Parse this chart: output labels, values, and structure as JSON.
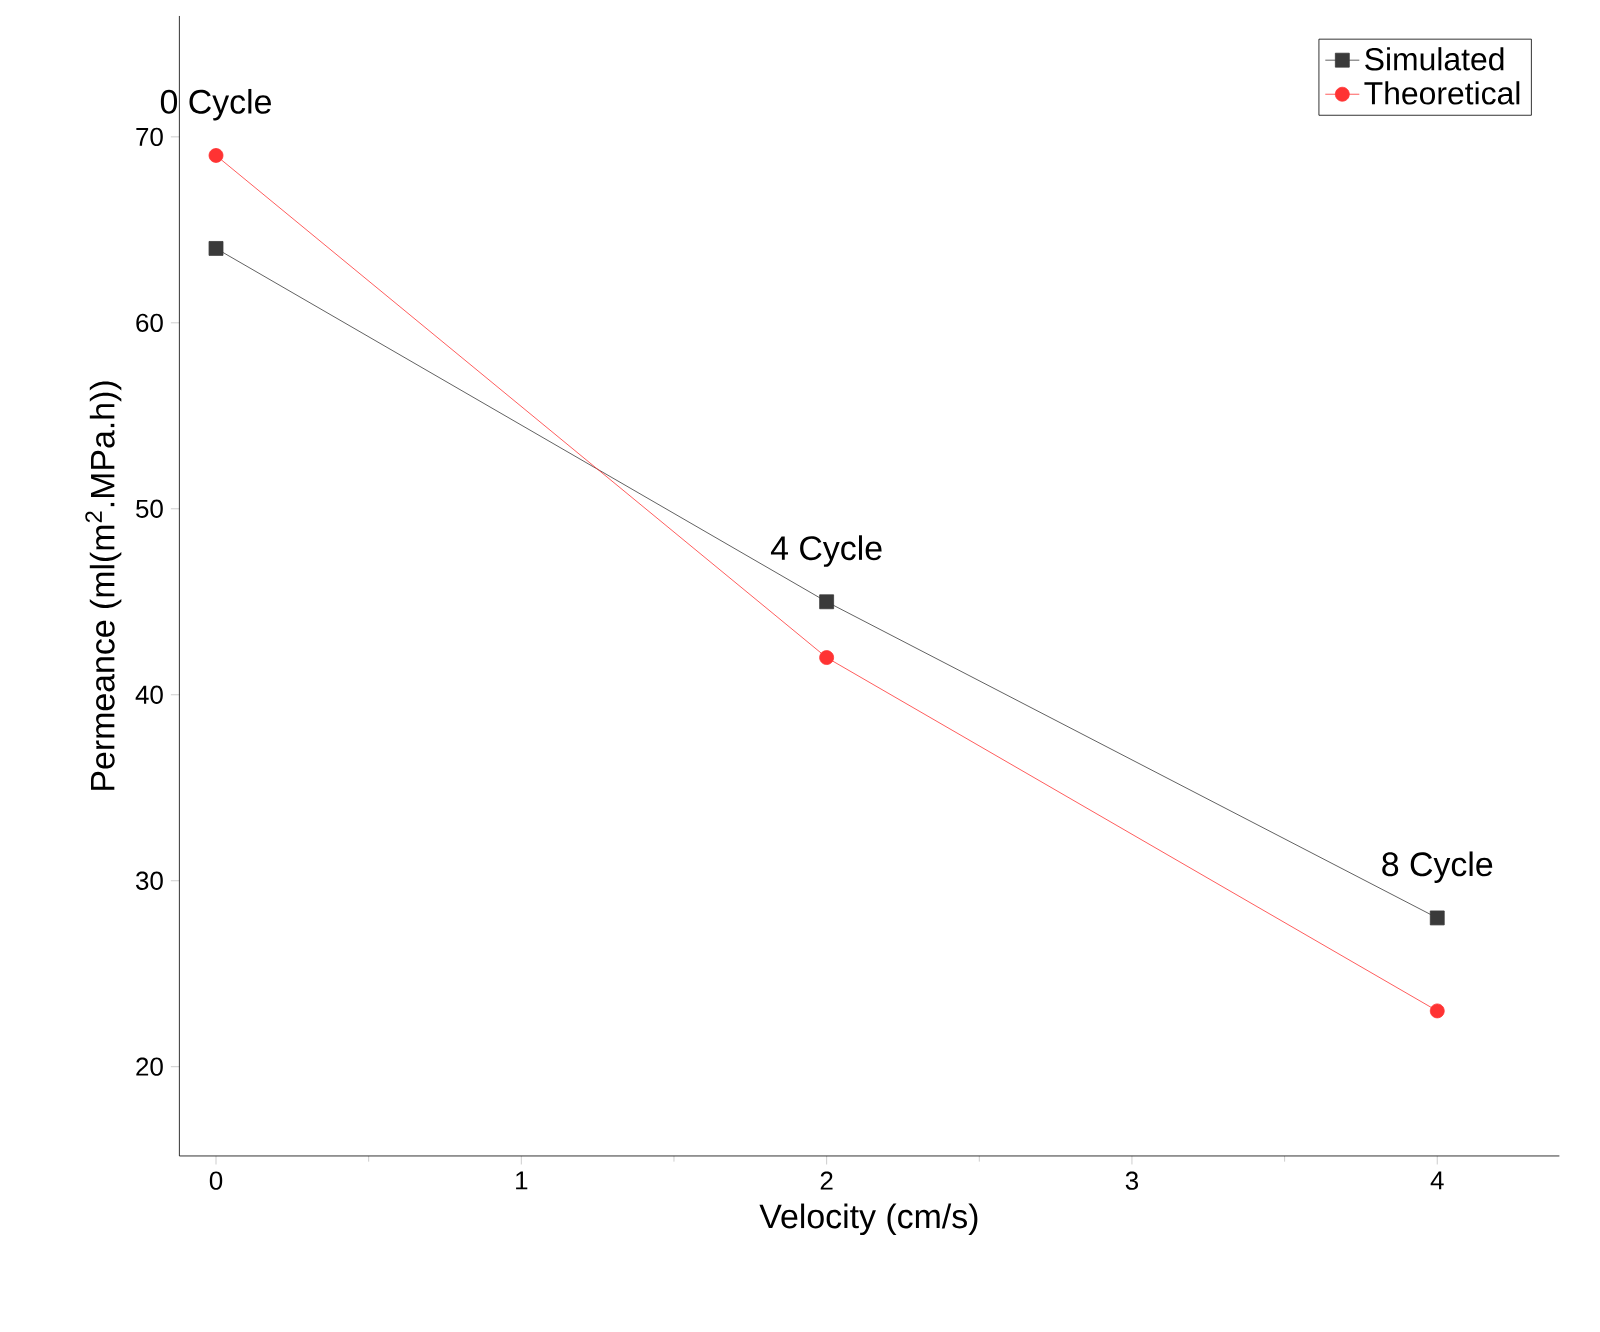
{
  "chart_data": {
    "type": "line",
    "xlabel": "Velocity (cm/s)",
    "ylabel": "Permeance (ml(m$^{2}$.MPa.h))",
    "x": [
      0,
      2,
      4
    ],
    "series": [
      {
        "name": "Simulated",
        "color": "#3a3a3a",
        "marker": "square",
        "values": [
          64,
          45,
          28
        ]
      },
      {
        "name": "Theoretical",
        "color": "#ff3333",
        "marker": "circle",
        "values": [
          69,
          42,
          23
        ]
      }
    ],
    "xlim": [
      -0.12,
      4.4
    ],
    "ylim": [
      15.2,
      76.5
    ],
    "xticks": [
      0,
      1,
      2,
      3,
      4
    ],
    "yticks": [
      20,
      30,
      40,
      50,
      60,
      70
    ],
    "annotations": [
      {
        "text": "0 Cycle",
        "x": 0,
        "y": 69
      },
      {
        "text": "4 Cycle",
        "x": 2,
        "y": 45
      },
      {
        "text": "8 Cycle",
        "x": 4,
        "y": 28
      }
    ],
    "legend": "top right",
    "grid": false
  }
}
